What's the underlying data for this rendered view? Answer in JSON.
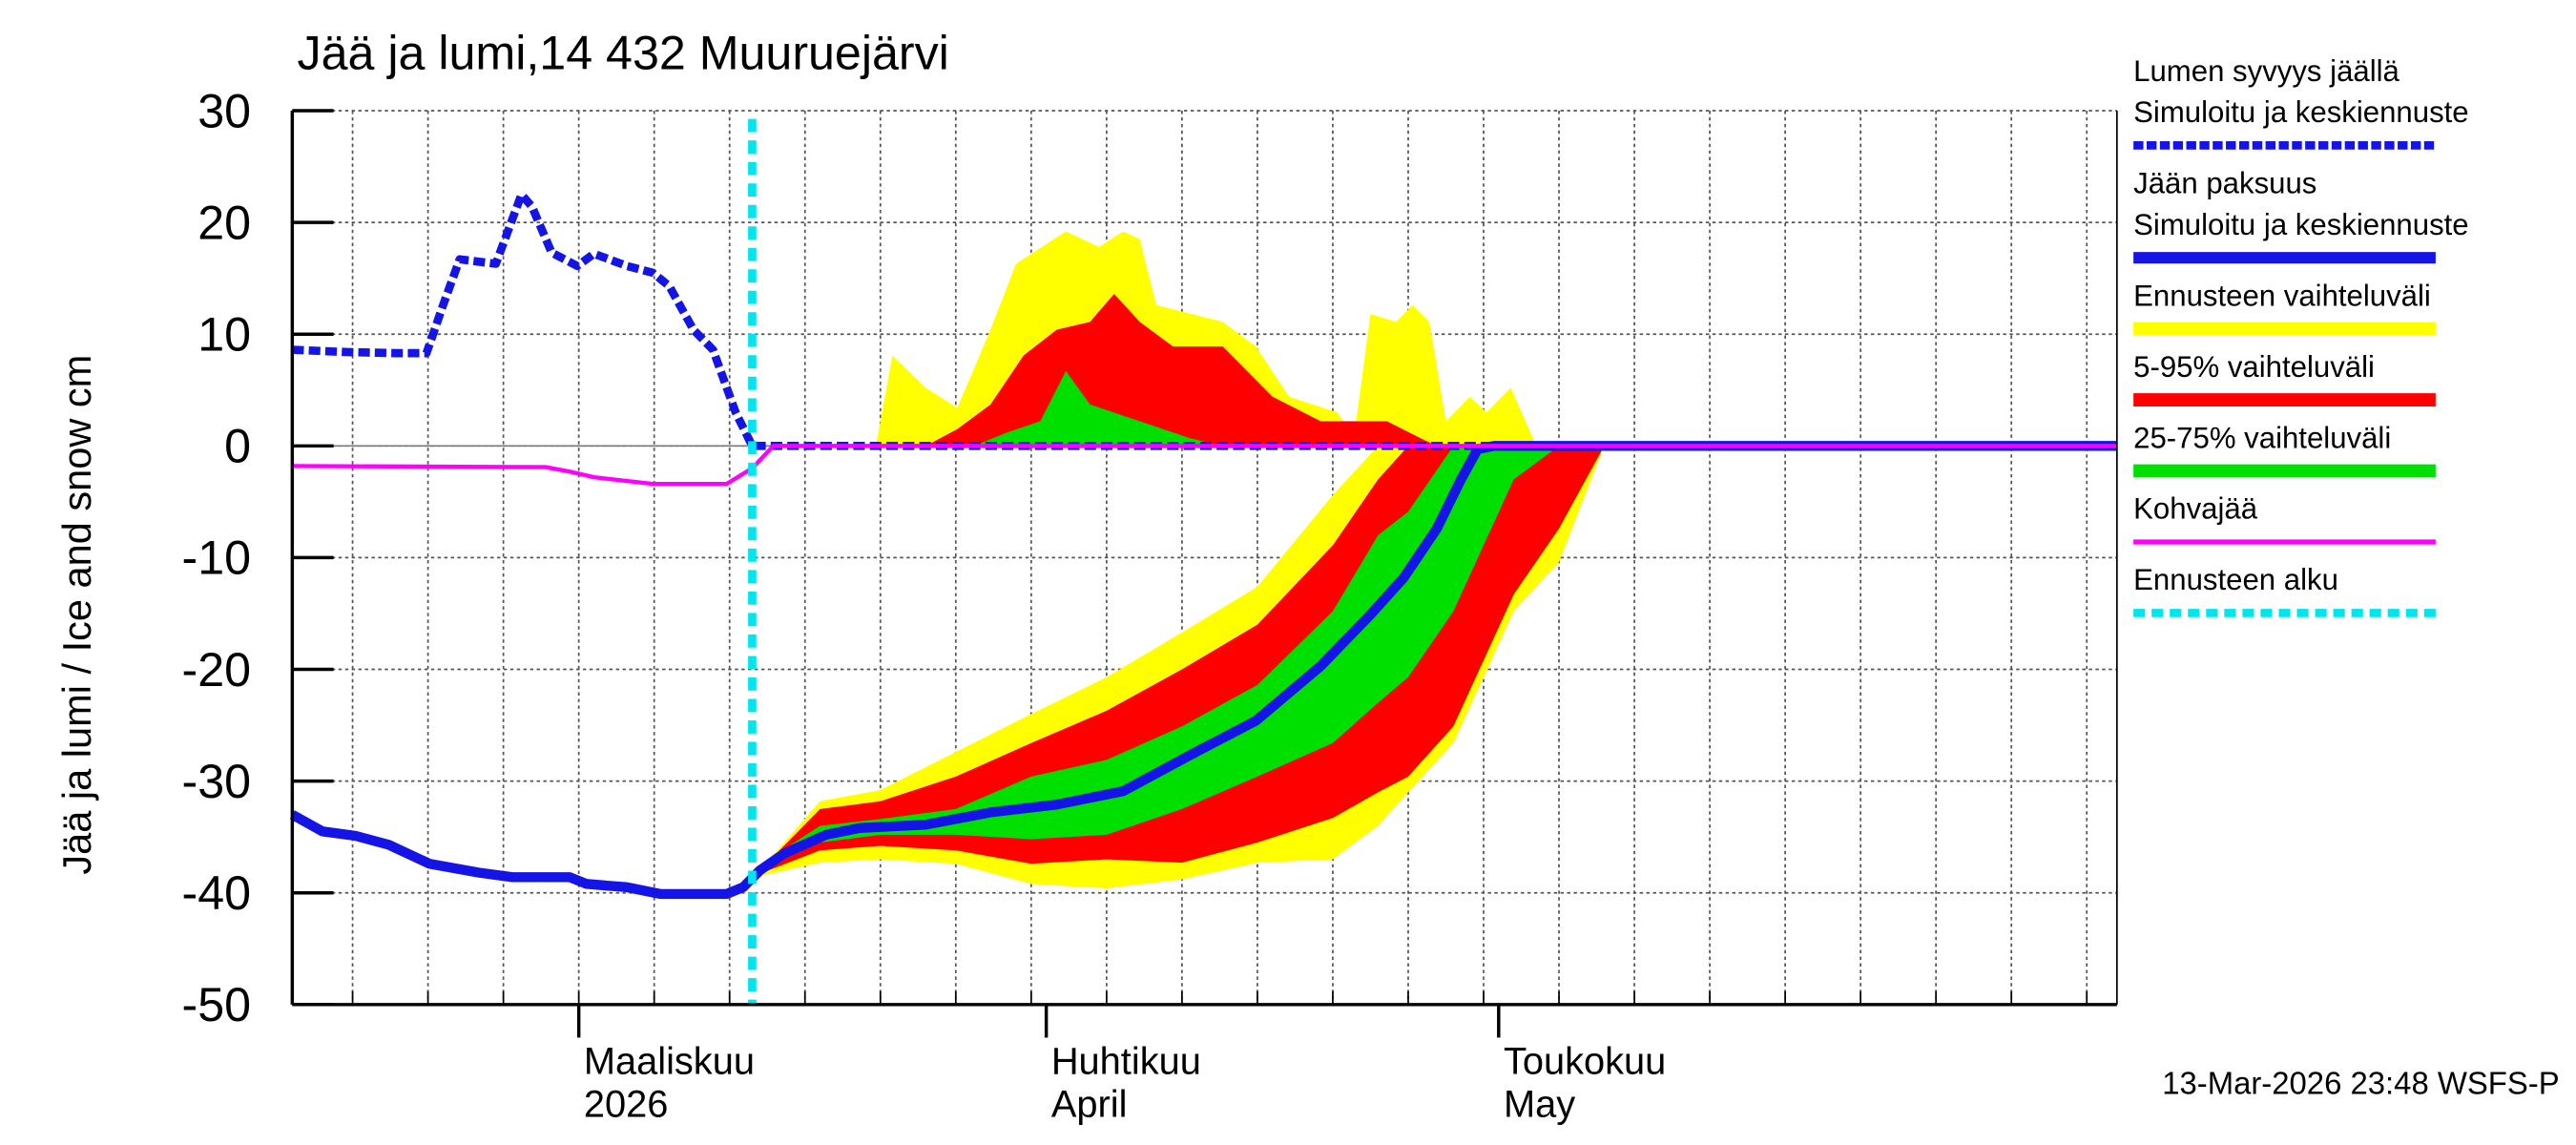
{
  "chart_data": {
    "type": "ice-snow",
    "title": "Jää ja lumi,14 432 Muuruejärvi",
    "y_label": "Jää ja lumi / Ice and snow    cm",
    "footer": "13-Mar-2026 23:48 WSFS-P",
    "xlim": [
      41,
      162
    ],
    "xticks": [
      {
        "value": 60,
        "label": [
          "Maaliskuu",
          "2026"
        ]
      },
      {
        "value": 91,
        "label": [
          "Huhtikuu",
          "April"
        ]
      },
      {
        "value": 121,
        "label": [
          "Toukokuu",
          "May"
        ]
      }
    ],
    "xgrid": [
      45,
      50,
      55,
      60,
      65,
      70,
      75,
      80,
      85,
      90,
      95,
      100,
      105,
      110,
      115,
      120,
      125,
      130,
      135,
      140,
      145,
      150,
      155,
      160
    ],
    "ylim": [
      -50,
      30
    ],
    "yticks": [
      -50,
      -40,
      -30,
      -20,
      -10,
      0,
      10,
      20,
      30
    ],
    "grid": true,
    "bands": [
      {
        "name": "Ennusteen vaihteluväli",
        "color": "#ffff00",
        "parts": [
          {
            "x": [
              72,
              76,
              80,
              85,
              90,
              95,
              100,
              105,
              110,
              113,
              115,
              118,
              120,
              122,
              125,
              128,
              130
            ],
            "low": [
              -38.5,
              -37.3,
              -37,
              -37.4,
              -39.2,
              -39.6,
              -38.8,
              -37.3,
              -37,
              -34,
              -31,
              -26.6,
              -20.7,
              -14.8,
              -10.4,
              0,
              0
            ],
            "high": [
              -38,
              -31.8,
              -30.8,
              -27.4,
              -24,
              -20.7,
              -16.7,
              -12.6,
              -4.4,
              0,
              0,
              0,
              0,
              0,
              0,
              0,
              0
            ]
          },
          {
            "x": [
              79.7,
              80.8,
              83,
              85.1,
              87.3,
              89,
              92.3,
              94.5,
              96.1,
              97.2,
              98.3,
              102.7,
              104.9,
              107.1,
              110.3,
              111.4,
              112.5,
              114.2,
              115.3,
              116.4,
              117.5,
              119.1,
              120.2,
              121.8,
              123.5
            ],
            "low": [
              0,
              0,
              0,
              0,
              0,
              0,
              0,
              0,
              0,
              0,
              0,
              0,
              0,
              0,
              0,
              0,
              0,
              0,
              0,
              0,
              0,
              0,
              0,
              0,
              0
            ],
            "high": [
              0,
              8.1,
              5.2,
              3.4,
              10.4,
              16.3,
              19.2,
              17.8,
              19.2,
              18.5,
              12.6,
              11.1,
              8.9,
              4.4,
              3,
              0.7,
              11.8,
              11.1,
              12.6,
              11.1,
              2.2,
              4.4,
              3,
              5.2,
              0
            ]
          }
        ]
      },
      {
        "name": "5-95% vaihteluväli",
        "color": "#ff0000",
        "parts": [
          {
            "x": [
              72,
              76,
              80,
              85,
              90,
              95,
              100,
              105,
              110,
              113,
              115,
              118,
              120,
              122,
              125,
              128,
              130
            ],
            "low": [
              -38.3,
              -36.2,
              -35.8,
              -36.2,
              -37.4,
              -37,
              -37.3,
              -35.5,
              -33.3,
              -31,
              -29.6,
              -25.1,
              -19.2,
              -13.3,
              -7.4,
              0,
              0
            ],
            "high": [
              -38,
              -32.5,
              -31.8,
              -29.6,
              -26.6,
              -23.7,
              -20,
              -16,
              -8.9,
              -3,
              0,
              0,
              0,
              0,
              0,
              0,
              0
            ]
          },
          {
            "x": [
              83,
              85.1,
              87.3,
              89.5,
              91.7,
              93.9,
              95.5,
              97.2,
              99.4,
              102.7,
              106,
              109.2,
              113.6,
              115.8,
              116.9
            ],
            "low": [
              0,
              0,
              0,
              0,
              0,
              0,
              0,
              0,
              0,
              0,
              0,
              0,
              0,
              0,
              0
            ],
            "high": [
              0,
              1.5,
              3.7,
              8.1,
              10.4,
              11.1,
              13.6,
              11.1,
              8.9,
              8.9,
              4.4,
              2.2,
              2.2,
              0.7,
              0
            ]
          }
        ]
      },
      {
        "name": "25-75% vaihteluväli",
        "color": "#00e000",
        "parts": [
          {
            "x": [
              72,
              76,
              80,
              85,
              90,
              95,
              100,
              105,
              110,
              113,
              115,
              118,
              120,
              122,
              125,
              128,
              130
            ],
            "low": [
              -38,
              -35.5,
              -34.8,
              -34.8,
              -35.2,
              -34.8,
              -32.5,
              -29.6,
              -26.6,
              -23,
              -20.7,
              -14.8,
              -8.9,
              -3,
              0,
              0,
              0
            ],
            "high": [
              -37.5,
              -34,
              -33.4,
              -32.5,
              -29.6,
              -28.1,
              -25.1,
              -21.4,
              -14.8,
              -8,
              -5.9,
              0,
              0,
              0,
              0,
              0,
              0
            ]
          },
          {
            "x": [
              86.2,
              88.4,
              90.6,
              92.3,
              93.9,
              97.2,
              100.5,
              102.7
            ],
            "low": [
              0,
              0,
              0,
              0,
              0,
              0,
              0,
              0
            ],
            "high": [
              0,
              1.2,
              2.2,
              6.7,
              3.7,
              2.2,
              0.7,
              0
            ]
          }
        ]
      }
    ],
    "series": [
      {
        "name": [
          "Lumen syvyys jäällä",
          "Simuloitu ja keskiennuste"
        ],
        "color": "#1414e6",
        "dashed": true,
        "x": [
          41,
          44.6,
          47.9,
          49.9,
          51,
          52.1,
          54.5,
          56.2,
          56.9,
          58.2,
          59.9,
          61,
          63.2,
          64.9,
          66,
          67.6,
          68.9,
          70.4,
          71.5,
          162
        ],
        "values": [
          8.6,
          8.4,
          8.3,
          8.3,
          12.6,
          16.7,
          16.3,
          22.5,
          21.4,
          17.3,
          16.1,
          17.2,
          16.1,
          15.5,
          14.3,
          10.4,
          8.6,
          3,
          0,
          0
        ]
      },
      {
        "name": [
          "Jään paksuus",
          "Simuloitu ja keskiennuste"
        ],
        "color": "#1414e6",
        "dashed": false,
        "x": [
          41,
          43,
          45.2,
          47.4,
          50.1,
          53.4,
          55.6,
          59.4,
          60.5,
          63.2,
          65.4,
          69.8,
          70.9,
          72,
          73.6,
          76.4,
          78.6,
          83,
          87.3,
          91.7,
          96.1,
          100.5,
          104.9,
          109.2,
          112.5,
          114.7,
          116.9,
          118.5,
          119.6,
          120.7,
          162
        ],
        "values": [
          -33,
          -34.5,
          -34.9,
          -35.7,
          -37.4,
          -38.2,
          -38.6,
          -38.6,
          -39.2,
          -39.5,
          -40.1,
          -40.1,
          -39.5,
          -38,
          -36.5,
          -34.8,
          -34.2,
          -33.9,
          -32.8,
          -32.1,
          -30.9,
          -27.7,
          -24.6,
          -19.7,
          -15.1,
          -11.8,
          -7.4,
          -3,
          -0.3,
          0,
          0
        ]
      },
      {
        "name": [
          "Kohvajää"
        ],
        "color": "#ff00ff",
        "dashed": false,
        "x": [
          41,
          57.8,
          59.4,
          61,
          64.9,
          69.8,
          71.5,
          72.9,
          162
        ],
        "values": [
          -1.8,
          -1.9,
          -2.3,
          -2.8,
          -3.4,
          -3.4,
          -2,
          0,
          0
        ]
      }
    ],
    "forecast_start": {
      "name": "Ennusteen alku",
      "x": 71.5,
      "color": "#00e5ee"
    }
  }
}
